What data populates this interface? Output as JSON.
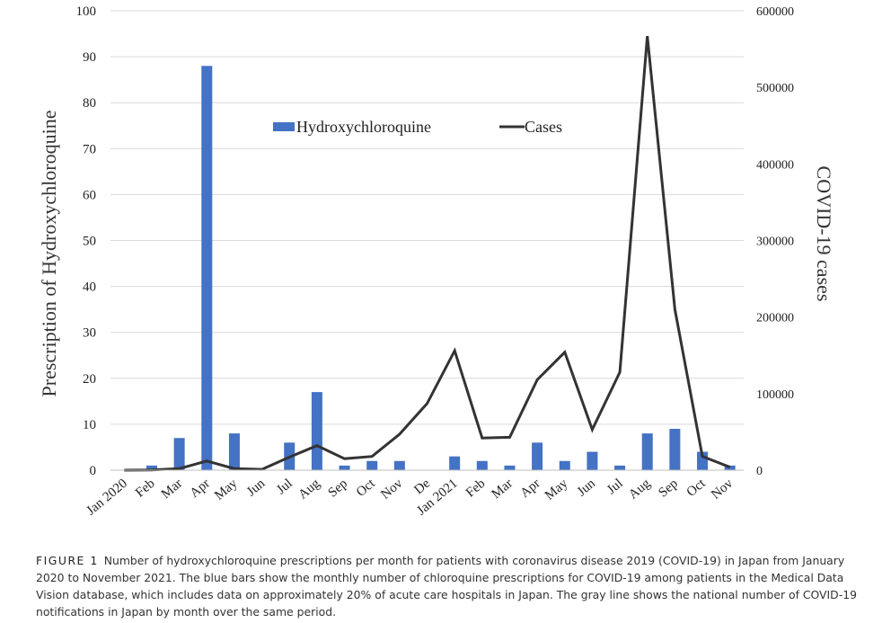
{
  "chart_data": {
    "type": "bar+line",
    "categories": [
      "Jan 2020",
      "Feb",
      "Mar",
      "Apr",
      "May",
      "Jun",
      "Jul",
      "Aug",
      "Sep",
      "Oct",
      "Nov",
      "De",
      "Jan 2021",
      "Feb",
      "Mar",
      "Apr",
      "May",
      "Jun",
      "Jul",
      "Aug",
      "Sep",
      "Oct",
      "Nov"
    ],
    "series": [
      {
        "name": "Hydroxychloroquine",
        "type": "bar",
        "axis": "left",
        "color": "#4472C4",
        "values": [
          0,
          1,
          7,
          88,
          8,
          0,
          6,
          17,
          1,
          2,
          2,
          0,
          3,
          2,
          1,
          6,
          2,
          4,
          1,
          8,
          9,
          4,
          1
        ]
      },
      {
        "name": "Cases",
        "type": "line",
        "axis": "right",
        "color": "#333333",
        "values": [
          0,
          200,
          2000,
          12000,
          2000,
          1000,
          17000,
          32000,
          15000,
          18000,
          47000,
          87000,
          156000,
          42000,
          43000,
          118000,
          154000,
          53000,
          128000,
          567000,
          210000,
          18000,
          4000
        ]
      }
    ],
    "ylabel": "Prescription of Hydroxychloroquine",
    "y2label": "COVID-19 cases",
    "ylim": [
      0,
      100
    ],
    "y2lim": [
      0,
      600000
    ],
    "yticks": [
      "0",
      "10",
      "20",
      "30",
      "40",
      "50",
      "60",
      "70",
      "80",
      "90",
      "100"
    ],
    "y2ticks": [
      "0",
      "100000",
      "200000",
      "300000",
      "400000",
      "500000",
      "600000"
    ],
    "grid": true,
    "legend": "top-center"
  },
  "caption": {
    "label": "FIGURE 1",
    "text": "Number of hydroxychloroquine prescriptions per month for patients with coronavirus disease 2019 (COVID-19) in Japan from January 2020 to November 2021. The blue bars show the monthly number of chloroquine prescriptions for COVID-19 among patients in the Medical Data Vision database, which includes data on approximately 20% of acute care hospitals in Japan. The gray line shows the national number of COVID-19 notifications in Japan by month over the same period."
  }
}
